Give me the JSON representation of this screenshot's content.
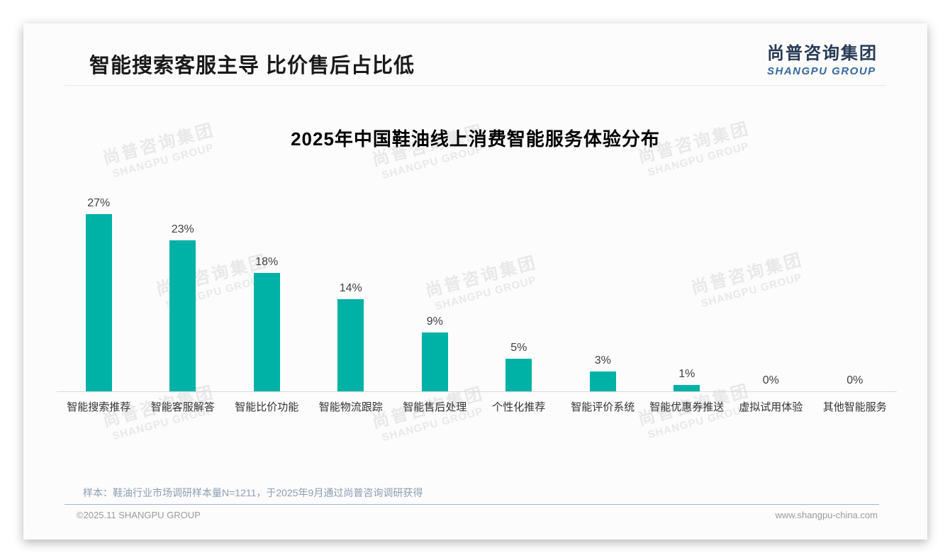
{
  "header": {
    "title": "智能搜索客服主导 比价售后占比低",
    "logo": {
      "chinese": "尚普咨询集团",
      "english": "SHANGPU GROUP",
      "chinese_color": "#263a55",
      "english_color": "#35689f"
    }
  },
  "chart_data": {
    "type": "bar",
    "title": "2025年中国鞋油线上消费智能服务体验分布",
    "categories": [
      "智能搜索推荐",
      "智能客服解答",
      "智能比价功能",
      "智能物流跟踪",
      "智能售后处理",
      "个性化推荐",
      "智能评价系统",
      "智能优惠券推送",
      "虚拟试用体验",
      "其他智能服务"
    ],
    "values": [
      27,
      23,
      18,
      14,
      9,
      5,
      3,
      1,
      0,
      0
    ],
    "value_labels": [
      "27%",
      "23%",
      "18%",
      "14%",
      "9%",
      "5%",
      "3%",
      "1%",
      "0%",
      "0%"
    ],
    "value_suffix": "%",
    "xlabel": "",
    "ylabel": "",
    "ylim": [
      0,
      30
    ],
    "grid": false,
    "legend": false,
    "bar_color": "#00b1a5",
    "value_label_color": "#404040",
    "category_label_color": "#333333"
  },
  "footnote": {
    "sample_note": "样本：鞋油行业市场调研样本量N=1211，于2025年9月通过尚普咨询调研获得"
  },
  "footer": {
    "copyright": "©2025.11 SHANGPU GROUP",
    "website": "www.shangpu-china.com"
  },
  "watermark": {
    "chinese": "尚普咨询集团",
    "english": "SHANGPU GROUP"
  }
}
